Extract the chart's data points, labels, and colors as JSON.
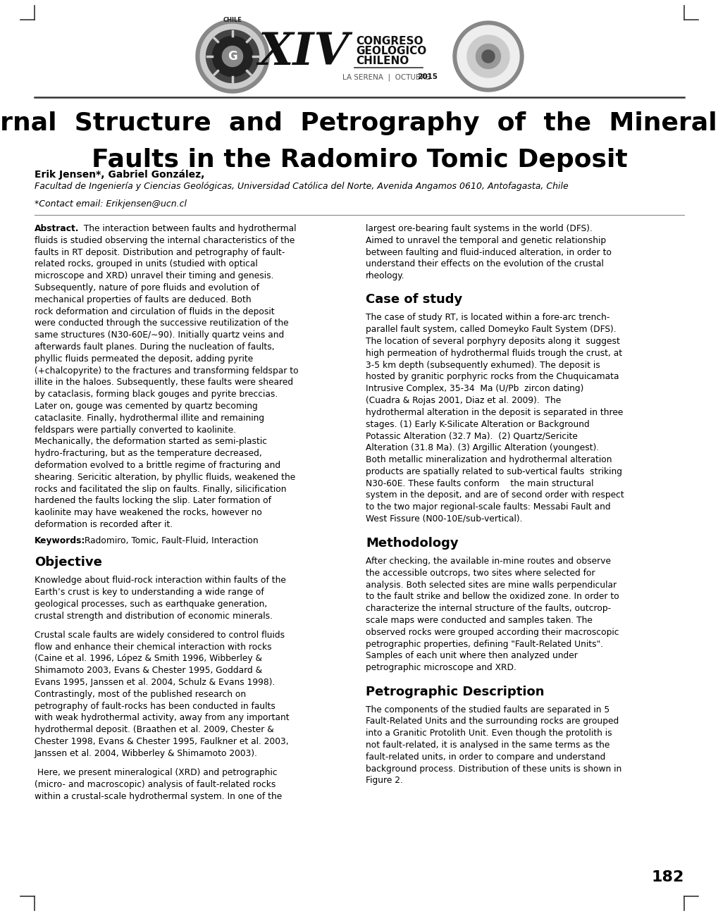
{
  "title_line1": "Internal  Structure  and  Petrography  of  the  Mineralized",
  "title_line2": "Faults in the Radomiro Tomic Deposit",
  "authors": "Erik Jensen*, Gabriel González,",
  "affiliation": "Facultad de Ingeniería y Ciencias Geológicas, Universidad Católica del Norte, Avenida Angamos 0610, Antofagasta, Chile",
  "contact": "*Contact email: Erikjensen@ucn.cl",
  "page_number": "182",
  "bg_color": "#ffffff",
  "text_color": "#000000",
  "abstract_left_line1": "Abstract.  The interaction between faults and hydrothermal",
  "abstract_body_left": "fluids is studied observing the internal characteristics of the\nfaults in RT deposit. Distribution and petrography of fault-\nrelated rocks, grouped in units (studied with optical\nmicroscope and XRD) unravel their timing and genesis.\nSubsequently, nature of pore fluids and evolution of\nmechanical properties of faults are deduced. Both\nrock deformation and circulation of fluids in the deposit\nwere conducted through the successive reutilization of the\nsame structures (N30-60E/∼90). Initially quartz veins and\nafterwards fault planes. During the nucleation of faults,\nphyllic fluids permeated the deposit, adding pyrite\n(+chalcopyrite) to the fractures and transforming feldspar to\nillite in the haloes. Subsequently, these faults were sheared\nby cataclasis, forming black gouges and pyrite breccias.\nLater on, gouge was cemented by quartz becoming\ncataclasite. Finally, hydrothermal illite and remaining\nfeldspars were partially converted to kaolinite.\nMechanically, the deformation started as semi-plastic\nhydro-fracturing, but as the temperature decreased,\ndeformation evolved to a brittle regime of fracturing and\nshearing. Sericitic alteration, by phyllic fluids, weakened the\nrocks and facilitated the slip on faults. Finally, silicification\nhardened the faults locking the slip. Later formation of\nkaolinite may have weakened the rocks, however no\ndeformation is recorded after it.",
  "abstract_right": "largest ore-bearing fault systems in the world (DFS).\nAimed to unravel the temporal and genetic relationship\nbetween faulting and fluid-induced alteration, in order to\nunderstand their effects on the evolution of the crustal\nrheology.",
  "keywords_bold": "Keywords:",
  "keywords_rest": " Radomiro, Tomic, Fault-Fluid, Interaction",
  "obj_title": "Objective",
  "obj_p1": "Knowledge about fluid-rock interaction within faults of the\nEarth’s crust is key to understanding a wide range of\ngeological processes, such as earthquake generation,\ncrustal strength and distribution of economic minerals.",
  "obj_p2": "Crustal scale faults are widely considered to control fluids\nflow and enhance their chemical interaction with rocks\n(Caine et al. 1996, López & Smith 1996, Wibberley &\nShimamoto 2003, Evans & Chester 1995, Goddard &\nEvans 1995, Janssen et al. 2004, Schulz & Evans 1998).\nContrastingly, most of the published research on\npetrography of fault-rocks has been conducted in faults\nwith weak hydrothermal activity, away from any important\nhydrothermal deposit. (Braathen et al. 2009, Chester &\nChester 1998, Evans & Chester 1995, Faulkner et al. 2003,\nJanssen et al. 2004, Wibberley & Shimamoto 2003).",
  "obj_p3": " Here, we present mineralogical (XRD) and petrographic\n(micro- and macroscopic) analysis of fault-related rocks\nwithin a crustal-scale hydrothermal system. In one of the",
  "case_title": "Case of study",
  "case_text": "The case of study RT, is located within a fore-arc trench-\nparallel fault system, called Domeyko Fault System (DFS).\nThe location of several porphyry deposits along it  suggest\nhigh permeation of hydrothermal fluids trough the crust, at\n3-5 km depth (subsequently exhumed). The deposit is\nhosted by granitic porphyric rocks from the Chuquicamata\nIntrusive Complex, 35-34  Ma (U/Pb  zircon dating)\n(Cuadra & Rojas 2001, Diaz et al. 2009).  The\nhydrothermal alteration in the deposit is separated in three\nstages. (1) Early K-Silicate Alteration or Background\nPotassic Alteration (32.7 Ma).  (2) Quartz/Sericite\nAlteration (31.8 Ma). (3) Argillic Alteration (youngest).\nBoth metallic mineralization and hydrothermal alteration\nproducts are spatially related to sub-vertical faults  striking\nN30-60E. These faults conform    the main structural\nsystem in the deposit, and are of second order with respect\nto the two major regional-scale faults: Messabi Fault and\nWest Fissure (N00-10E/sub-vertical).",
  "meth_title": "Methodology",
  "meth_text": "After checking, the available in-mine routes and observe\nthe accessible outcrops, two sites where selected for\nanalysis. Both selected sites are mine walls perpendicular\nto the fault strike and bellow the oxidized zone. In order to\ncharacterize the internal structure of the faults, outcrop-\nscale maps were conducted and samples taken. The\nobserved rocks were grouped according their macroscopic\npetrographic properties, defining \"Fault-Related Units\".\nSamples of each unit where then analyzed under\npetrographic microscope and XRD.",
  "petro_title": "Petrographic Description",
  "petro_text": "The components of the studied faults are separated in 5\nFault-Related Units and the surrounding rocks are grouped\ninto a Granitic Protolith Unit. Even though the protolith is\nnot fault-related, it is analysed in the same terms as the\nfault-related units, in order to compare and understand\nbackground process. Distribution of these units is shown in\nFigure 2."
}
